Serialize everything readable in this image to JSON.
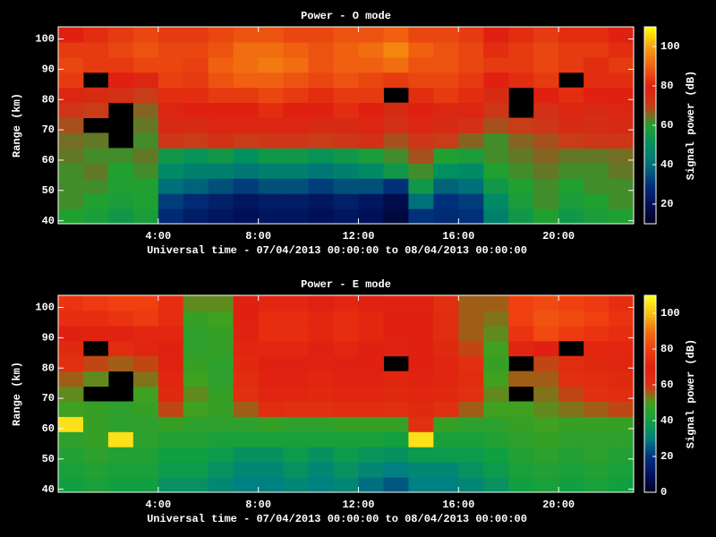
{
  "chart_data": [
    {
      "type": "heatmap",
      "title": "Power - O mode",
      "xlabel": "Universal time - 07/04/2013 00:00:00 to 08/04/2013 00:00:00",
      "ylabel": "Range (km)",
      "colorbar_label": "Signal power (dB)",
      "x": [
        0.5,
        1.5,
        2.5,
        3.5,
        4.5,
        5.5,
        6.5,
        7.5,
        8.5,
        9.5,
        10.5,
        11.5,
        12.5,
        13.5,
        14.5,
        15.5,
        16.5,
        17.5,
        18.5,
        19.5,
        20.5,
        21.5,
        22.5
      ],
      "y": [
        41.5,
        46.5,
        51.5,
        56.5,
        61.5,
        66.5,
        71.5,
        76.5,
        81.5,
        86.5,
        91.5,
        96.5,
        101.5
      ],
      "z": [
        [
          60,
          58,
          55,
          58,
          28,
          24,
          22,
          20,
          22,
          22,
          20,
          22,
          20,
          16,
          30,
          28,
          30,
          45,
          55,
          60,
          55,
          58,
          60
        ],
        [
          62,
          60,
          58,
          60,
          32,
          28,
          25,
          22,
          24,
          24,
          22,
          25,
          22,
          18,
          40,
          30,
          32,
          48,
          58,
          62,
          58,
          60,
          62
        ],
        [
          62,
          62,
          60,
          60,
          40,
          38,
          35,
          32,
          35,
          35,
          32,
          35,
          35,
          30,
          55,
          38,
          40,
          55,
          60,
          62,
          60,
          62,
          62
        ],
        [
          62,
          64,
          60,
          62,
          48,
          45,
          45,
          42,
          45,
          45,
          42,
          45,
          48,
          55,
          62,
          50,
          48,
          60,
          62,
          64,
          62,
          62,
          64
        ],
        [
          64,
          62,
          62,
          64,
          55,
          52,
          55,
          50,
          55,
          55,
          52,
          55,
          58,
          62,
          68,
          60,
          58,
          62,
          64,
          66,
          64,
          64,
          65
        ],
        [
          65,
          64,
          null,
          62,
          72,
          70,
          74,
          70,
          72,
          72,
          70,
          72,
          74,
          68,
          72,
          70,
          66,
          62,
          66,
          68,
          70,
          72,
          72
        ],
        [
          68,
          null,
          null,
          64,
          76,
          76,
          78,
          78,
          78,
          78,
          76,
          76,
          78,
          74,
          78,
          76,
          74,
          68,
          70,
          72,
          76,
          75,
          76
        ],
        [
          72,
          70,
          null,
          66,
          78,
          80,
          80,
          80,
          82,
          80,
          80,
          82,
          80,
          76,
          80,
          78,
          78,
          72,
          null,
          74,
          78,
          76,
          78
        ],
        [
          78,
          76,
          74,
          70,
          82,
          82,
          84,
          84,
          86,
          84,
          82,
          84,
          84,
          null,
          82,
          84,
          82,
          76,
          null,
          80,
          82,
          80,
          80
        ],
        [
          84,
          null,
          80,
          78,
          85,
          84,
          88,
          90,
          90,
          88,
          86,
          88,
          86,
          84,
          86,
          86,
          84,
          80,
          82,
          84,
          null,
          82,
          82
        ],
        [
          86,
          84,
          84,
          86,
          86,
          85,
          90,
          92,
          94,
          92,
          88,
          90,
          90,
          92,
          88,
          88,
          86,
          84,
          84,
          86,
          84,
          82,
          84
        ],
        [
          84,
          84,
          86,
          88,
          86,
          86,
          88,
          92,
          92,
          90,
          88,
          90,
          92,
          96,
          90,
          88,
          86,
          82,
          84,
          86,
          84,
          84,
          82
        ],
        [
          80,
          82,
          84,
          86,
          84,
          84,
          86,
          88,
          88,
          86,
          86,
          88,
          88,
          90,
          86,
          86,
          84,
          80,
          82,
          84,
          82,
          82,
          80
        ]
      ],
      "xlim": [
        0,
        23
      ],
      "ylim": [
        39,
        104
      ],
      "xticks": [
        {
          "value": 4,
          "label": "4:00"
        },
        {
          "value": 8,
          "label": "8:00"
        },
        {
          "value": 12,
          "label": "12:00"
        },
        {
          "value": 16,
          "label": "16:00"
        },
        {
          "value": 20,
          "label": "20:00"
        }
      ],
      "yticks": [
        40,
        50,
        60,
        70,
        80,
        90,
        100
      ],
      "zlim": [
        10,
        110
      ],
      "zticks": [
        20,
        40,
        60,
        80,
        100
      ],
      "colorscale": [
        "#000018",
        "#001058",
        "#00307a",
        "#00707a",
        "#009060",
        "#20a030",
        "#c83c18",
        "#e02010",
        "#f06010",
        "#f8a010",
        "#ffff00"
      ]
    },
    {
      "type": "heatmap",
      "title": "Power - E mode",
      "xlabel": "Universal time - 07/04/2013 00:00:00 to 08/04/2013 00:00:00",
      "ylabel": "Range (km)",
      "colorbar_label": "Signal power (dB)",
      "x": [
        0.5,
        1.5,
        2.5,
        3.5,
        4.5,
        5.5,
        6.5,
        7.5,
        8.5,
        9.5,
        10.5,
        11.5,
        12.5,
        13.5,
        14.5,
        15.5,
        16.5,
        17.5,
        18.5,
        19.5,
        20.5,
        21.5,
        22.5
      ],
      "y": [
        41.5,
        46.5,
        51.5,
        56.5,
        61.5,
        66.5,
        71.5,
        76.5,
        81.5,
        86.5,
        91.5,
        96.5,
        101.5
      ],
      "z": [
        [
          40,
          42,
          40,
          40,
          35,
          35,
          32,
          30,
          30,
          32,
          30,
          32,
          28,
          25,
          30,
          30,
          32,
          35,
          40,
          42,
          40,
          42,
          40
        ],
        [
          42,
          44,
          42,
          42,
          38,
          38,
          35,
          32,
          32,
          35,
          32,
          35,
          32,
          30,
          32,
          32,
          35,
          38,
          42,
          44,
          42,
          44,
          42
        ],
        [
          44,
          46,
          44,
          44,
          40,
          40,
          38,
          35,
          35,
          38,
          35,
          38,
          36,
          35,
          38,
          38,
          38,
          40,
          44,
          46,
          44,
          46,
          44
        ],
        [
          46,
          48,
          105,
          46,
          44,
          44,
          42,
          42,
          42,
          42,
          42,
          42,
          42,
          40,
          105,
          42,
          42,
          44,
          46,
          48,
          46,
          46,
          46
        ],
        [
          105,
          48,
          46,
          46,
          48,
          46,
          46,
          46,
          48,
          46,
          46,
          48,
          48,
          48,
          60,
          48,
          46,
          46,
          48,
          50,
          48,
          48,
          48
        ],
        [
          50,
          48,
          46,
          48,
          58,
          50,
          48,
          56,
          62,
          60,
          60,
          62,
          62,
          60,
          64,
          60,
          56,
          50,
          50,
          52,
          54,
          56,
          58
        ],
        [
          52,
          null,
          null,
          50,
          64,
          52,
          48,
          60,
          66,
          66,
          64,
          66,
          66,
          64,
          66,
          64,
          60,
          52,
          null,
          54,
          58,
          60,
          62
        ],
        [
          56,
          52,
          null,
          54,
          66,
          50,
          46,
          62,
          68,
          68,
          66,
          68,
          68,
          66,
          68,
          66,
          62,
          50,
          56,
          56,
          60,
          62,
          64
        ],
        [
          60,
          58,
          56,
          58,
          68,
          48,
          46,
          64,
          70,
          70,
          68,
          70,
          70,
          null,
          70,
          66,
          60,
          48,
          null,
          58,
          62,
          64,
          66
        ],
        [
          64,
          null,
          62,
          66,
          70,
          46,
          48,
          66,
          72,
          72,
          70,
          72,
          70,
          68,
          70,
          64,
          58,
          50,
          66,
          70,
          null,
          72,
          72
        ],
        [
          70,
          68,
          68,
          72,
          72,
          46,
          48,
          68,
          74,
          74,
          72,
          74,
          72,
          70,
          70,
          62,
          56,
          52,
          76,
          82,
          78,
          76,
          74
        ],
        [
          74,
          74,
          76,
          78,
          74,
          48,
          50,
          70,
          74,
          74,
          72,
          74,
          72,
          70,
          70,
          62,
          56,
          54,
          80,
          84,
          82,
          80,
          76
        ],
        [
          76,
          78,
          80,
          80,
          74,
          52,
          52,
          70,
          72,
          72,
          70,
          72,
          70,
          68,
          68,
          60,
          56,
          56,
          80,
          82,
          80,
          78,
          74
        ]
      ],
      "xlim": [
        0,
        23
      ],
      "ylim": [
        39,
        104
      ],
      "xticks": [
        {
          "value": 4,
          "label": "4:00"
        },
        {
          "value": 8,
          "label": "8:00"
        },
        {
          "value": 12,
          "label": "12:00"
        },
        {
          "value": 16,
          "label": "16:00"
        },
        {
          "value": 20,
          "label": "20:00"
        }
      ],
      "yticks": [
        40,
        50,
        60,
        70,
        80,
        90,
        100
      ],
      "zlim": [
        0,
        110
      ],
      "zticks": [
        0,
        20,
        40,
        60,
        80,
        100
      ],
      "colorscale": [
        "#000020",
        "#001060",
        "#003080",
        "#008080",
        "#10a040",
        "#40a020",
        "#e03010",
        "#e02010",
        "#f04010",
        "#f07010",
        "#f8c010",
        "#ffff20"
      ]
    }
  ]
}
